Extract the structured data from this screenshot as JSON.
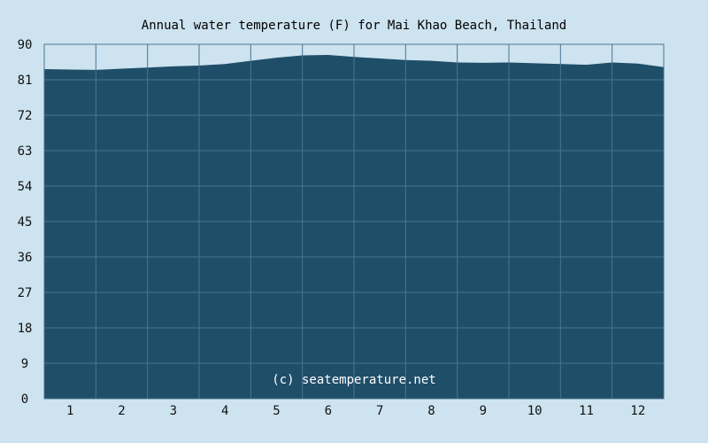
{
  "chart_data": {
    "type": "area",
    "title": "Annual water temperature (F) for Mai Khao Beach, Thailand",
    "xlabel": "",
    "ylabel": "",
    "ylim": [
      0,
      90
    ],
    "yticks": [
      "0",
      "9",
      "18",
      "27",
      "36",
      "45",
      "54",
      "63",
      "72",
      "81",
      "90"
    ],
    "categories": [
      "1",
      "2",
      "3",
      "4",
      "5",
      "6",
      "7",
      "8",
      "9",
      "10",
      "11",
      "12"
    ],
    "xlim": [
      0,
      12
    ],
    "grid": true,
    "legend": "none",
    "credit": "(c) seatemperature.net",
    "series": [
      {
        "x": [
          0,
          0.5,
          1,
          1.5,
          2,
          2.5,
          3,
          3.5,
          4,
          4.5,
          5,
          5.5,
          6,
          6.5,
          7,
          7.5,
          8,
          8.5,
          9,
          9.5,
          10,
          10.5,
          11,
          11.5,
          12
        ],
        "values": [
          83.7,
          83.6,
          83.5,
          83.8,
          84.1,
          84.4,
          84.6,
          85.0,
          85.8,
          86.6,
          87.2,
          87.3,
          86.8,
          86.4,
          86.0,
          85.8,
          85.4,
          85.3,
          85.4,
          85.2,
          85.0,
          84.8,
          85.4,
          85.1,
          84.2
        ],
        "fill": "#1f4e69"
      }
    ],
    "colors": {
      "background": "#cde3ef",
      "area": "#1f4e69",
      "grid": "#4a7490",
      "frame": "#4a7490",
      "text": "#111111"
    }
  }
}
